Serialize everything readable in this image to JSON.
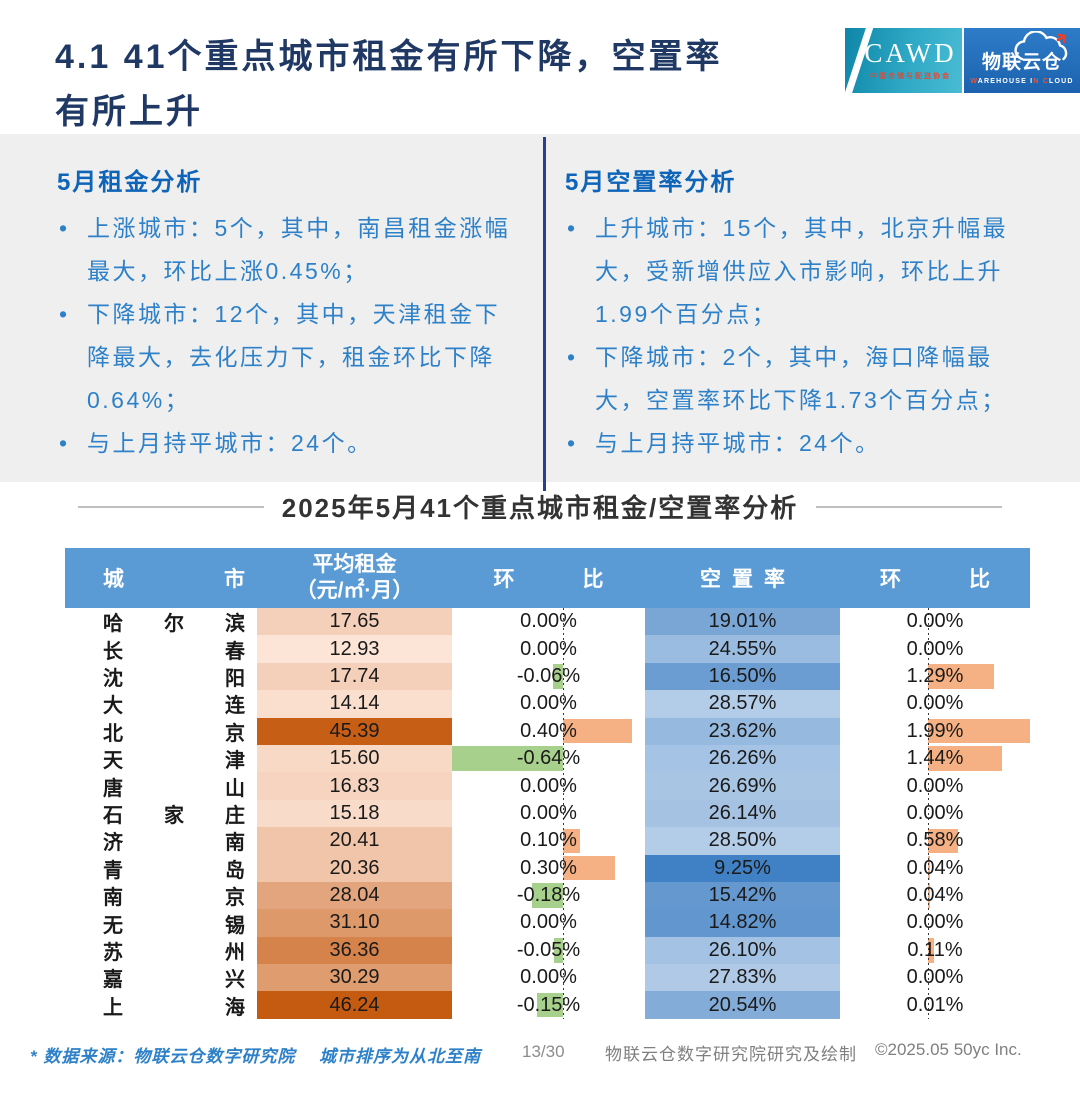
{
  "header": {
    "title_lines": [
      "4.1 41个重点城市租金有所下降，空置率",
      "有所上升"
    ],
    "logo": {
      "cawd": "CAWD",
      "cawd_sub": "中国仓储与配送协会",
      "cloud_name": "物联云仓",
      "cloud_tagline_parts": [
        {
          "text": "W",
          "highlight": true
        },
        {
          "text": "AREHOUSE ",
          "highlight": false
        },
        {
          "text": "I",
          "highlight": false
        },
        {
          "text": "N",
          "highlight": true
        },
        {
          "text": " ",
          "highlight": false
        },
        {
          "text": "C",
          "highlight": true
        },
        {
          "text": "LOUD",
          "highlight": false
        }
      ]
    }
  },
  "analysis": {
    "rent": {
      "title": "5月租金分析",
      "bullets": [
        "上涨城市：5个，其中，南昌租金涨幅最大，环比上涨0.45%；",
        "下降城市：12个，其中，天津租金下降最大，去化压力下，租金环比下降0.64%；",
        "与上月持平城市：24个。"
      ]
    },
    "vacancy": {
      "title": "5月空置率分析",
      "bullets": [
        "上升城市：15个，其中，北京升幅最大，受新增供应入市影响，环比上升1.99个百分点；",
        "下降城市：2个，其中，海口降幅最大，空置率环比下降1.73个百分点；",
        "与上月持平城市：24个。"
      ]
    }
  },
  "table": {
    "title": "2025年5月41个重点城市租金/空置率分析",
    "headers": {
      "city": "城市",
      "rent": "平均租金",
      "rent_unit": "（元/㎡·月）",
      "mom": "环比",
      "vacancy": "空置率",
      "mom2": "环比"
    },
    "rows": [
      {
        "city": "哈尔滨",
        "rent": "17.65",
        "rent_mom": "0.00",
        "vacancy": "19.01",
        "vacancy_mom": "0.00"
      },
      {
        "city": "长春",
        "rent": "12.93",
        "rent_mom": "0.00",
        "vacancy": "24.55",
        "vacancy_mom": "0.00"
      },
      {
        "city": "沈阳",
        "rent": "17.74",
        "rent_mom": "-0.06",
        "vacancy": "16.50",
        "vacancy_mom": "1.29"
      },
      {
        "city": "大连",
        "rent": "14.14",
        "rent_mom": "0.00",
        "vacancy": "28.57",
        "vacancy_mom": "0.00"
      },
      {
        "city": "北京",
        "rent": "45.39",
        "rent_mom": "0.40",
        "vacancy": "23.62",
        "vacancy_mom": "1.99"
      },
      {
        "city": "天津",
        "rent": "15.60",
        "rent_mom": "-0.64",
        "vacancy": "26.26",
        "vacancy_mom": "1.44"
      },
      {
        "city": "唐山",
        "rent": "16.83",
        "rent_mom": "0.00",
        "vacancy": "26.69",
        "vacancy_mom": "0.00"
      },
      {
        "city": "石家庄",
        "rent": "15.18",
        "rent_mom": "0.00",
        "vacancy": "26.14",
        "vacancy_mom": "0.00"
      },
      {
        "city": "济南",
        "rent": "20.41",
        "rent_mom": "0.10",
        "vacancy": "28.50",
        "vacancy_mom": "0.58"
      },
      {
        "city": "青岛",
        "rent": "20.36",
        "rent_mom": "0.30",
        "vacancy": "9.25",
        "vacancy_mom": "0.04"
      },
      {
        "city": "南京",
        "rent": "28.04",
        "rent_mom": "-0.18",
        "vacancy": "15.42",
        "vacancy_mom": "0.04"
      },
      {
        "city": "无锡",
        "rent": "31.10",
        "rent_mom": "0.00",
        "vacancy": "14.82",
        "vacancy_mom": "0.00"
      },
      {
        "city": "苏州",
        "rent": "36.36",
        "rent_mom": "-0.05",
        "vacancy": "26.10",
        "vacancy_mom": "0.11"
      },
      {
        "city": "嘉兴",
        "rent": "30.29",
        "rent_mom": "0.00",
        "vacancy": "27.83",
        "vacancy_mom": "0.00"
      },
      {
        "city": "上海",
        "rent": "46.24",
        "rent_mom": "-0.15",
        "vacancy": "20.54",
        "vacancy_mom": "0.01"
      }
    ]
  },
  "footer": {
    "source_note": "* 数据来源：物联云仓数字研究院　 城市排序为从北至南",
    "page": "13/30",
    "credit": "物联云仓数字研究院研究及绘制",
    "copyright": "©2025.05 50yc Inc."
  },
  "colors": {
    "title_navy": "#1F3864",
    "section_title_blue": "#0D64B8",
    "bullet_blue": "#2E81C8",
    "panel_bg": "#EFEFEF",
    "panel_divider": "#2B3F8C",
    "table_header_bg": "#5B9BD5",
    "rent_scale_min": "#FCE4D6",
    "rent_scale_max": "#C55A11",
    "vacancy_scale_low": "#B3CCE8",
    "vacancy_scale_high": "#4080C4",
    "bar_positive": "#F5B183",
    "bar_negative": "#A8D08D"
  }
}
